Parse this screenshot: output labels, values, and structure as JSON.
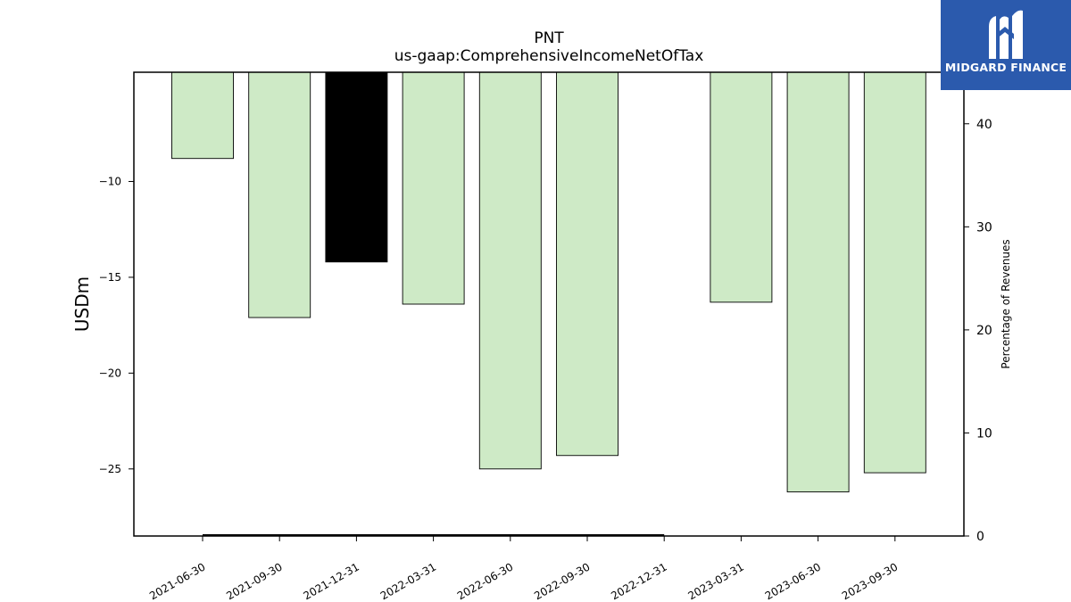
{
  "brand": {
    "name": "MIDGARD FINANCE",
    "logo_icon": "midgard-m-logo-icon",
    "color": "#2b5aad"
  },
  "chart_data": {
    "type": "bar",
    "title": "PNT",
    "subtitle": "us-gaap:ComprehensiveIncomeNetOfTax",
    "ylabel": "USDm",
    "y2label": "Percentage of Revenues",
    "categories": [
      "2021-06-30",
      "2021-09-30",
      "2021-12-31",
      "2022-03-31",
      "2022-06-30",
      "2022-09-30",
      "2022-12-31",
      "2023-03-31",
      "2023-06-30",
      "2023-09-30"
    ],
    "values": [
      -8.8,
      -17.1,
      -14.2,
      -16.4,
      -25.0,
      -24.3,
      null,
      -16.3,
      -26.2,
      -25.2
    ],
    "highlight_index": 2,
    "bar_color": "#ceeac6",
    "highlight_color": "#000000",
    "ylim": [
      -28.5,
      -4.3
    ],
    "yticks": [
      -10,
      -15,
      -20,
      -25
    ],
    "ytick_labels": [
      "−10",
      "−15",
      "−20",
      "−25"
    ],
    "y2lim": [
      0,
      45
    ],
    "y2ticks": [
      0,
      10,
      20,
      30,
      40
    ],
    "y2_series": [
      0,
      0,
      0,
      0,
      0,
      0,
      0
    ],
    "y2_series_span": [
      "2021-06-30",
      "2022-12-31"
    ],
    "grid": false,
    "legend": "none"
  }
}
